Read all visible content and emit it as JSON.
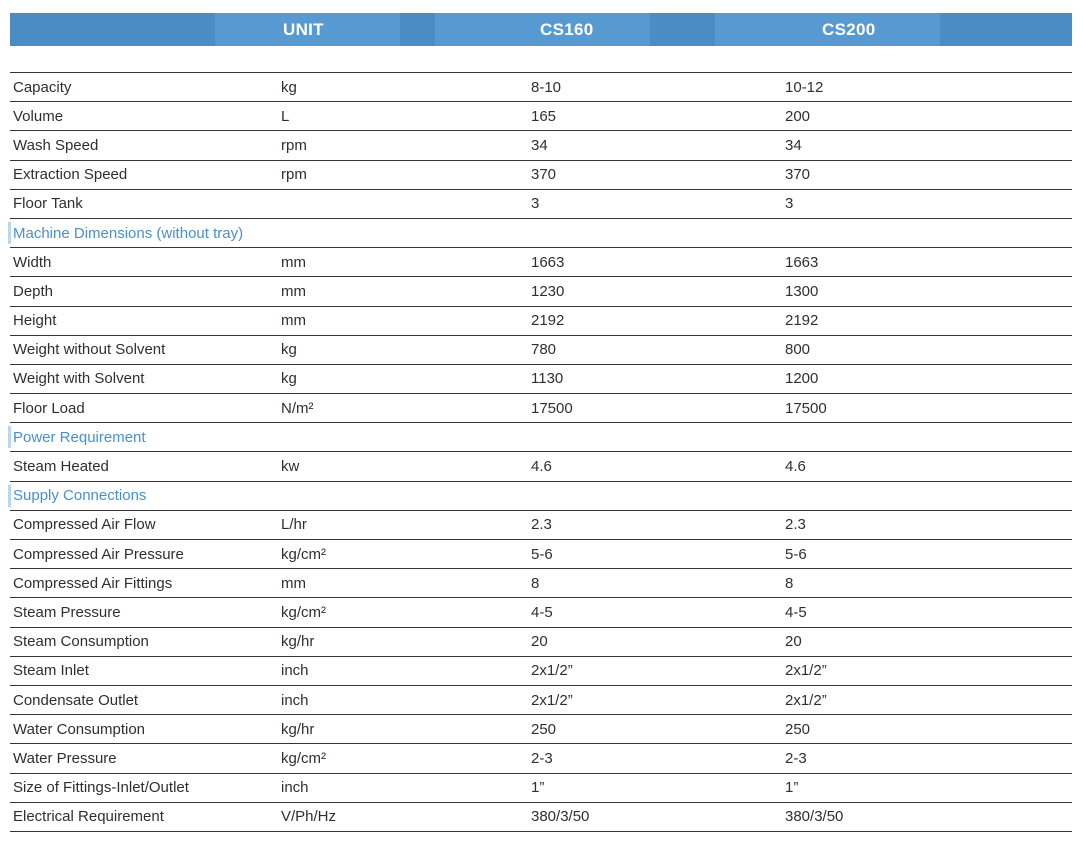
{
  "table": {
    "columns": [
      {
        "key": "unit",
        "label": "UNIT"
      },
      {
        "key": "cs160",
        "label": "CS160"
      },
      {
        "key": "cs200",
        "label": "CS200"
      }
    ],
    "rows": [
      {
        "label": "Capacity",
        "unit": "kg",
        "cs160": "8-10",
        "cs200": "10-12"
      },
      {
        "label": "Volume",
        "unit": "L",
        "cs160": "165",
        "cs200": "200"
      },
      {
        "label": "Wash Speed",
        "unit": "rpm",
        "cs160": "34",
        "cs200": "34"
      },
      {
        "label": "Extraction Speed",
        "unit": "rpm",
        "cs160": "370",
        "cs200": "370"
      },
      {
        "label": "Floor Tank",
        "unit": "",
        "cs160": "3",
        "cs200": "3"
      },
      {
        "section": "Machine Dimensions (without tray)"
      },
      {
        "label": "Width",
        "unit": "mm",
        "cs160": "1663",
        "cs200": "1663"
      },
      {
        "label": "Depth",
        "unit": "mm",
        "cs160": "1230",
        "cs200": "1300"
      },
      {
        "label": "Height",
        "unit": "mm",
        "cs160": "2192",
        "cs200": "2192"
      },
      {
        "label": "Weight without Solvent",
        "unit": "kg",
        "cs160": "780",
        "cs200": "800"
      },
      {
        "label": "Weight with Solvent",
        "unit": "kg",
        "cs160": "1130",
        "cs200": "1200"
      },
      {
        "label": "Floor Load",
        "unit": "N/m²",
        "cs160": "17500",
        "cs200": "17500"
      },
      {
        "section": "Power Requirement"
      },
      {
        "label": "Steam Heated",
        "unit": "kw",
        "cs160": "4.6",
        "cs200": "4.6"
      },
      {
        "section": "Supply Connections"
      },
      {
        "label": "Compressed Air Flow",
        "unit": "L/hr",
        "cs160": "2.3",
        "cs200": "2.3"
      },
      {
        "label": "Compressed Air Pressure",
        "unit": "kg/cm²",
        "cs160": "5-6",
        "cs200": "5-6"
      },
      {
        "label": "Compressed Air Fittings",
        "unit": "mm",
        "cs160": "8",
        "cs200": "8"
      },
      {
        "label": "Steam Pressure",
        "unit": "kg/cm²",
        "cs160": "4-5",
        "cs200": "4-5"
      },
      {
        "label": "Steam Consumption",
        "unit": "kg/hr",
        "cs160": "20",
        "cs200": "20"
      },
      {
        "label": "Steam Inlet",
        "unit": "inch",
        "cs160": "2x1/2”",
        "cs200": "2x1/2”"
      },
      {
        "label": "Condensate Outlet",
        "unit": "inch",
        "cs160": "2x1/2”",
        "cs200": "2x1/2”"
      },
      {
        "label": "Water Consumption",
        "unit": "kg/hr",
        "cs160": "250",
        "cs200": "250"
      },
      {
        "label": "Water Pressure",
        "unit": "kg/cm²",
        "cs160": "2-3",
        "cs200": "2-3"
      },
      {
        "label": "Size of Fittings-Inlet/Outlet",
        "unit": "inch",
        "cs160": "1”",
        "cs200": "1”"
      },
      {
        "label": "Electrical Requirement",
        "unit": "V/Ph/Hz",
        "cs160": "380/3/50",
        "cs200": "380/3/50"
      }
    ]
  },
  "colors": {
    "header_bar": "#4a8cc4",
    "header_cell_highlight": "#579ad1",
    "section_text": "#4a90c8",
    "row_border": "#3d3335",
    "body_text": "#342d2e"
  }
}
